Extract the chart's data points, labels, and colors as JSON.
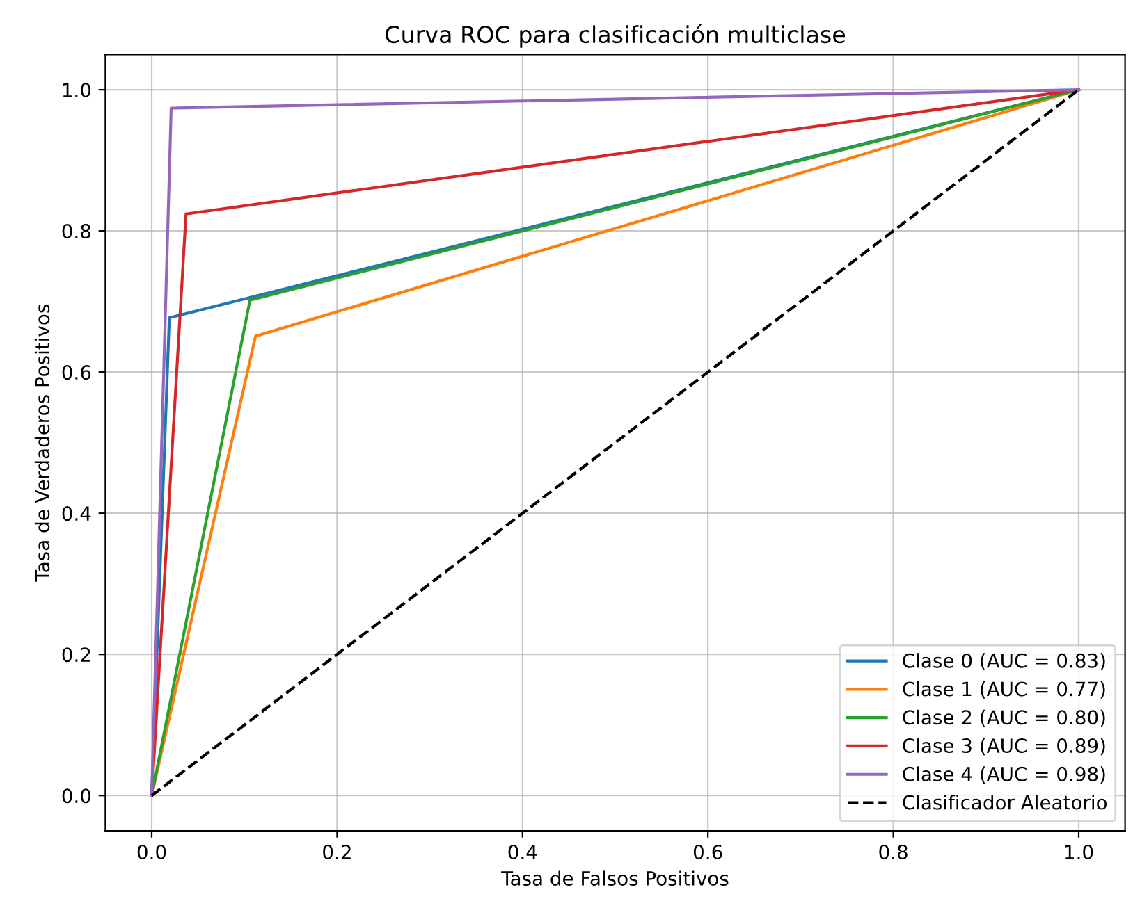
{
  "chart_data": {
    "type": "line",
    "title": "Curva ROC para clasificación multiclase",
    "xlabel": "Tasa de Falsos Positivos",
    "ylabel": "Tasa de Verdaderos Positivos",
    "series": [
      {
        "name": "Clase 0 (AUC = 0.83)",
        "color": "#1f77b4",
        "x": [
          0,
          0.019,
          1
        ],
        "values": [
          0,
          0.677,
          1
        ]
      },
      {
        "name": "Clase 1 (AUC = 0.77)",
        "color": "#ff7f0e",
        "x": [
          0,
          0.112,
          1
        ],
        "values": [
          0,
          0.651,
          1
        ]
      },
      {
        "name": "Clase 2 (AUC = 0.80)",
        "color": "#2ca02c",
        "x": [
          0,
          0.106,
          1
        ],
        "values": [
          0,
          0.702,
          1
        ]
      },
      {
        "name": "Clase 3 (AUC = 0.89)",
        "color": "#d62728",
        "x": [
          0,
          0.037,
          1
        ],
        "values": [
          0,
          0.824,
          1
        ]
      },
      {
        "name": "Clase 4 (AUC = 0.98)",
        "color": "#9467bd",
        "x": [
          0,
          0.021,
          1
        ],
        "values": [
          0,
          0.974,
          1
        ]
      },
      {
        "name": "Clasificador Aleatorio",
        "color": "#000000",
        "x": [
          0,
          1
        ],
        "values": [
          0,
          1
        ],
        "line_style": "dashed"
      }
    ],
    "xlim": [
      -0.05,
      1.05
    ],
    "ylim": [
      -0.05,
      1.05
    ],
    "xticks": [
      {
        "value": 0,
        "label": "0.0"
      },
      {
        "value": 0.2,
        "label": "0.2"
      },
      {
        "value": 0.4,
        "label": "0.4"
      },
      {
        "value": 0.6,
        "label": "0.6"
      },
      {
        "value": 0.8,
        "label": "0.8"
      },
      {
        "value": 1,
        "label": "1.0"
      }
    ],
    "yticks": [
      {
        "value": 0,
        "label": "0.0"
      },
      {
        "value": 0.2,
        "label": "0.2"
      },
      {
        "value": 0.4,
        "label": "0.4"
      },
      {
        "value": 0.6,
        "label": "0.6"
      },
      {
        "value": 0.8,
        "label": "0.8"
      },
      {
        "value": 1,
        "label": "1.0"
      }
    ],
    "grid": true,
    "legend": "bottom right",
    "line_style": "solid"
  }
}
